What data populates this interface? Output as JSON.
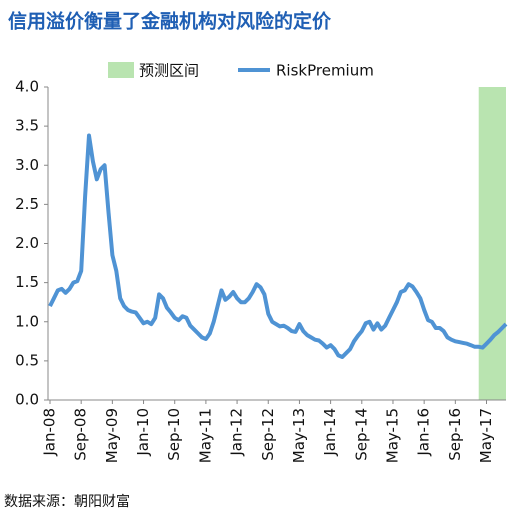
{
  "chart_data": {
    "type": "line",
    "title": "信用溢价衡量了金融机构对风险的定价",
    "source": "数据来源：朝阳财富",
    "categories": [
      "Jan-08",
      null,
      null,
      null,
      null,
      null,
      null,
      null,
      "Sep-08",
      null,
      null,
      null,
      null,
      null,
      null,
      null,
      "May-09",
      null,
      null,
      null,
      null,
      null,
      null,
      null,
      "Jan-10",
      null,
      null,
      null,
      null,
      null,
      null,
      null,
      "Sep-10",
      null,
      null,
      null,
      null,
      null,
      null,
      null,
      "May-11",
      null,
      null,
      null,
      null,
      null,
      null,
      null,
      "Jan-12",
      null,
      null,
      null,
      null,
      null,
      null,
      null,
      "Sep-12",
      null,
      null,
      null,
      null,
      null,
      null,
      null,
      "May-13",
      null,
      null,
      null,
      null,
      null,
      null,
      null,
      "Jan-14",
      null,
      null,
      null,
      null,
      null,
      null,
      null,
      "Sep-14",
      null,
      null,
      null,
      null,
      null,
      null,
      null,
      "May-15",
      null,
      null,
      null,
      null,
      null,
      null,
      null,
      "Jan-16",
      null,
      null,
      null,
      null,
      null,
      null,
      null,
      "Sep-16",
      null,
      null,
      null,
      null,
      null,
      null,
      null,
      "May-17",
      null,
      null,
      null,
      null,
      null
    ],
    "series": [
      {
        "name": "RiskPremium",
        "color": "#4f93d4",
        "values": [
          1.2,
          1.3,
          1.4,
          1.42,
          1.37,
          1.42,
          1.5,
          1.52,
          1.65,
          2.6,
          3.38,
          3.05,
          2.82,
          2.95,
          3.0,
          2.4,
          1.85,
          1.65,
          1.3,
          1.2,
          1.15,
          1.13,
          1.12,
          1.05,
          0.98,
          1.0,
          0.97,
          1.05,
          1.35,
          1.3,
          1.18,
          1.12,
          1.05,
          1.02,
          1.07,
          1.05,
          0.95,
          0.9,
          0.85,
          0.8,
          0.78,
          0.85,
          1.0,
          1.2,
          1.4,
          1.28,
          1.32,
          1.38,
          1.3,
          1.25,
          1.25,
          1.3,
          1.38,
          1.48,
          1.44,
          1.35,
          1.1,
          1.0,
          0.97,
          0.94,
          0.95,
          0.92,
          0.88,
          0.87,
          0.97,
          0.88,
          0.83,
          0.8,
          0.77,
          0.76,
          0.72,
          0.67,
          0.7,
          0.65,
          0.57,
          0.55,
          0.6,
          0.65,
          0.75,
          0.82,
          0.88,
          0.98,
          1.0,
          0.9,
          0.98,
          0.9,
          0.95,
          1.05,
          1.15,
          1.25,
          1.38,
          1.4,
          1.48,
          1.45,
          1.38,
          1.3,
          1.15,
          1.02,
          1.0,
          0.92,
          0.92,
          0.88,
          0.8,
          0.77,
          0.75,
          0.74,
          0.73,
          0.72,
          0.7,
          0.68,
          0.68,
          0.67,
          0.72,
          0.77,
          0.83,
          0.87,
          0.92,
          0.97
        ]
      }
    ],
    "forecast": {
      "name": "预测区间",
      "color": "#b9e4b0",
      "start": 110,
      "end": 117
    },
    "ylim": [
      0,
      4
    ],
    "yticks": [
      {
        "value": 0,
        "label": "0.0"
      },
      {
        "value": 0.5,
        "label": "0.5"
      },
      {
        "value": 1,
        "label": "1.0"
      },
      {
        "value": 1.5,
        "label": "1.5"
      },
      {
        "value": 2,
        "label": "2.0"
      },
      {
        "value": 2.5,
        "label": "2.5"
      },
      {
        "value": 3,
        "label": "3.0"
      },
      {
        "value": 3.5,
        "label": "3.5"
      },
      {
        "value": 4,
        "label": "4.0"
      }
    ],
    "grid": false
  }
}
